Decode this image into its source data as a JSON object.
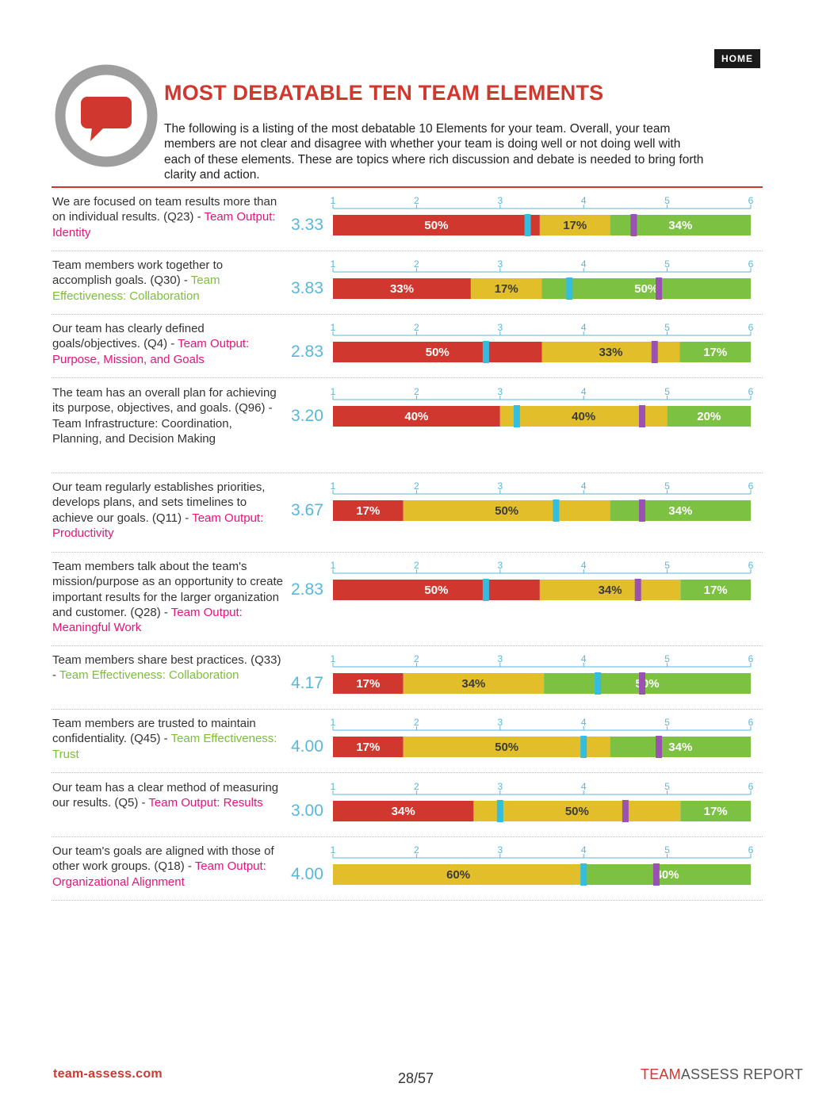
{
  "header": {
    "home_label": "HOME",
    "title": "MOST DEBATABLE TEN TEAM ELEMENTS",
    "intro": "The following is a listing of the most debatable 10 Elements for your team. Overall, your team members are not clear and disagree with whether your team is doing well or not doing well with each of these elements. These are topics where rich discussion and debate is needed to bring forth clarity and action."
  },
  "colors": {
    "red": "#d0382f",
    "yellow": "#e2bf2a",
    "green": "#7dc143",
    "cyan_marker": "#35bde0",
    "purple_marker": "#9a52b0",
    "pink_category": "#e3157a",
    "green_category": "#7cbf3a",
    "score_blue": "#59b7dd"
  },
  "chart_data": {
    "type": "bar",
    "xlim": [
      1,
      6
    ],
    "ticks": [
      "1",
      "2",
      "3",
      "4",
      "5",
      "6"
    ],
    "items": [
      {
        "statement": "We are focused on team results more than on individual results. (Q23) - ",
        "category": "Team Output: Identity",
        "category_style": "pink",
        "score": "3.33",
        "segments": [
          {
            "color": "red",
            "label": "50%",
            "value": 50
          },
          {
            "color": "yellow",
            "label": "17%",
            "value": 17
          },
          {
            "color": "green",
            "label": "34%",
            "value": 34
          }
        ],
        "cyan_marker": 3.33,
        "purple_marker": 4.6
      },
      {
        "statement": "Team members work together to accomplish goals. (Q30) - ",
        "category": "Team Effectiveness: Collaboration",
        "category_style": "green",
        "score": "3.83",
        "segments": [
          {
            "color": "red",
            "label": "33%",
            "value": 33
          },
          {
            "color": "yellow",
            "label": "17%",
            "value": 17
          },
          {
            "color": "green",
            "label": "50%",
            "value": 50
          }
        ],
        "cyan_marker": 3.83,
        "purple_marker": 4.9
      },
      {
        "statement": "Our team has clearly defined goals/objectives. (Q4) - ",
        "category": "Team Output: Purpose, Mission, and Goals",
        "category_style": "pink",
        "score": "2.83",
        "segments": [
          {
            "color": "red",
            "label": "50%",
            "value": 50
          },
          {
            "color": "yellow",
            "label": "33%",
            "value": 33
          },
          {
            "color": "green",
            "label": "17%",
            "value": 17
          }
        ],
        "cyan_marker": 2.83,
        "purple_marker": 4.85
      },
      {
        "statement": "The team has an overall plan for achieving its purpose, objectives, and goals. (Q96) - ",
        "category": "Team Infrastructure: Coordination, Planning, and Decision Making",
        "category_style": "dark",
        "score": "3.20",
        "segments": [
          {
            "color": "red",
            "label": "40%",
            "value": 40
          },
          {
            "color": "yellow",
            "label": "40%",
            "value": 40
          },
          {
            "color": "green",
            "label": "20%",
            "value": 20
          }
        ],
        "cyan_marker": 3.2,
        "purple_marker": 4.7
      },
      {
        "statement": "Our team regularly establishes priorities, develops plans, and sets timelines to achieve our goals. (Q11) - ",
        "category": "Team Output: Productivity",
        "category_style": "pink",
        "score": "3.67",
        "segments": [
          {
            "color": "red",
            "label": "17%",
            "value": 17
          },
          {
            "color": "yellow",
            "label": "50%",
            "value": 50
          },
          {
            "color": "green",
            "label": "34%",
            "value": 34
          }
        ],
        "cyan_marker": 3.67,
        "purple_marker": 4.7
      },
      {
        "statement": "Team members talk about the team's mission/purpose as an opportunity to create important results for the larger organization and customer. (Q28) - ",
        "category": "Team Output: Meaningful Work",
        "category_style": "pink",
        "score": "2.83",
        "segments": [
          {
            "color": "red",
            "label": "50%",
            "value": 50
          },
          {
            "color": "yellow",
            "label": "34%",
            "value": 34
          },
          {
            "color": "green",
            "label": "17%",
            "value": 17
          }
        ],
        "cyan_marker": 2.83,
        "purple_marker": 4.65
      },
      {
        "statement": "Team members share best practices. (Q33) - ",
        "category": "Team Effectiveness: Collaboration",
        "category_style": "green",
        "score": "4.17",
        "segments": [
          {
            "color": "red",
            "label": "17%",
            "value": 17
          },
          {
            "color": "yellow",
            "label": "34%",
            "value": 34
          },
          {
            "color": "green",
            "label": "50%",
            "value": 50
          }
        ],
        "cyan_marker": 4.17,
        "purple_marker": 4.7
      },
      {
        "statement": "Team members are trusted to maintain confidentiality. (Q45) - ",
        "category": "Team Effectiveness: Trust",
        "category_style": "green",
        "score": "4.00",
        "segments": [
          {
            "color": "red",
            "label": "17%",
            "value": 17
          },
          {
            "color": "yellow",
            "label": "50%",
            "value": 50
          },
          {
            "color": "green",
            "label": "34%",
            "value": 34
          }
        ],
        "cyan_marker": 4.0,
        "purple_marker": 4.9
      },
      {
        "statement": "Our team has a clear method of measuring our results. (Q5) - ",
        "category": "Team Output: Results",
        "category_style": "pink",
        "score": "3.00",
        "segments": [
          {
            "color": "red",
            "label": "34%",
            "value": 34
          },
          {
            "color": "yellow",
            "label": "50%",
            "value": 50
          },
          {
            "color": "green",
            "label": "17%",
            "value": 17
          }
        ],
        "cyan_marker": 3.0,
        "purple_marker": 4.5
      },
      {
        "statement": "Our team's goals are aligned with those of other work groups. (Q18) - ",
        "category": "Team Output: Organizational Alignment",
        "category_style": "pink",
        "score": "4.00",
        "segments": [
          {
            "color": "yellow",
            "label": "60%",
            "value": 60
          },
          {
            "color": "green",
            "label": "40%",
            "value": 40
          }
        ],
        "cyan_marker": 4.0,
        "purple_marker": 4.87
      }
    ]
  },
  "footer": {
    "site": "team-assess.com",
    "page": "28/57",
    "brand_red": "TEAM",
    "brand_rest": "ASSESS REPORT"
  }
}
